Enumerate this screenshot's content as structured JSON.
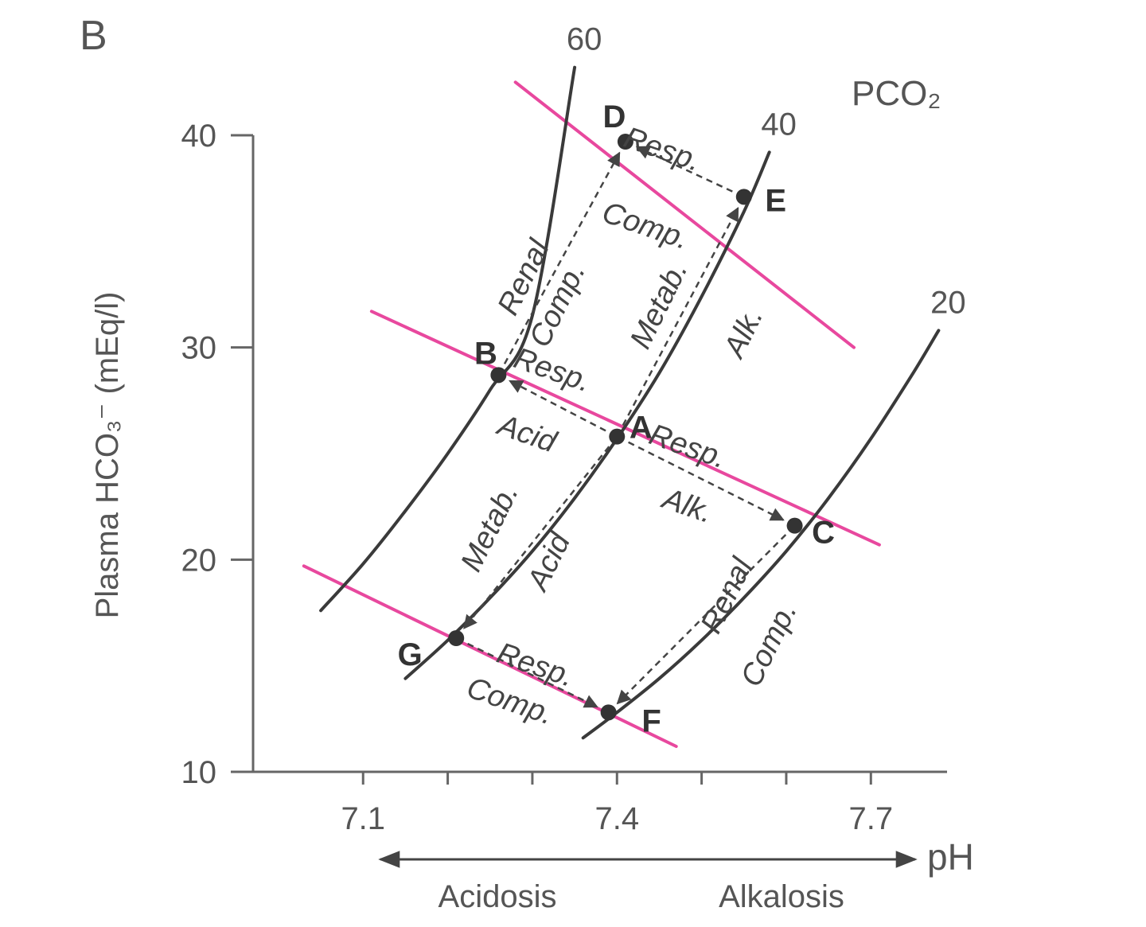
{
  "chart_data": {
    "type": "line",
    "panel_label": "B",
    "xlabel": "pH",
    "ylabel": "Plasma HCO₃⁻ (mEq/l)",
    "xlim": [
      6.97,
      7.79
    ],
    "ylim": [
      10,
      40
    ],
    "x_ticks": [
      7.1,
      7.2,
      7.3,
      7.4,
      7.5,
      7.6,
      7.7
    ],
    "x_tick_labels": [
      "7.1",
      "7.4",
      "7.7"
    ],
    "x_tick_label_values": [
      7.1,
      7.4,
      7.7
    ],
    "y_ticks": [
      10,
      20,
      30,
      40
    ],
    "y_tick_labels": [
      "10",
      "20",
      "30",
      "40"
    ],
    "y_tick_label_values": [
      10,
      20,
      30,
      40
    ],
    "isobar_title": "PCO₂",
    "series": [
      {
        "name": "60",
        "color": "#3a3a3a",
        "x": [
          7.05,
          7.1,
          7.15,
          7.2,
          7.25,
          7.3,
          7.35
        ],
        "y": [
          17.6,
          19.8,
          22.3,
          25.0,
          28.0,
          31.5,
          43.2
        ]
      },
      {
        "name": "40",
        "color": "#3a3a3a",
        "x": [
          7.15,
          7.2,
          7.25,
          7.3,
          7.35,
          7.4,
          7.45,
          7.5,
          7.55,
          7.58
        ],
        "y": [
          14.4,
          16.2,
          18.2,
          20.4,
          22.9,
          25.7,
          28.8,
          32.4,
          36.4,
          39.2
        ]
      },
      {
        "name": "20",
        "color": "#3a3a3a",
        "x": [
          7.36,
          7.4,
          7.45,
          7.5,
          7.55,
          7.6,
          7.65,
          7.7,
          7.75,
          7.78
        ],
        "y": [
          11.6,
          12.8,
          14.4,
          16.2,
          18.2,
          20.4,
          22.9,
          25.7,
          28.8,
          30.8
        ]
      }
    ],
    "buffer_lines": [
      {
        "color": "#e8489e",
        "x": [
          7.28,
          7.68
        ],
        "y": [
          42.5,
          30.0
        ]
      },
      {
        "color": "#e8489e",
        "x": [
          7.11,
          7.71
        ],
        "y": [
          31.7,
          20.7
        ]
      },
      {
        "color": "#e8489e",
        "x": [
          7.03,
          7.47
        ],
        "y": [
          19.7,
          11.2
        ]
      }
    ],
    "points": [
      {
        "label": "A",
        "x": 7.4,
        "y": 25.8
      },
      {
        "label": "B",
        "x": 7.26,
        "y": 28.7
      },
      {
        "label": "C",
        "x": 7.61,
        "y": 21.6
      },
      {
        "label": "D",
        "x": 7.41,
        "y": 39.7
      },
      {
        "label": "E",
        "x": 7.55,
        "y": 37.1
      },
      {
        "label": "F",
        "x": 7.39,
        "y": 12.8
      },
      {
        "label": "G",
        "x": 7.21,
        "y": 16.3
      }
    ],
    "arrows": [
      {
        "from": "A",
        "to": "B"
      },
      {
        "from": "A",
        "to": "C"
      },
      {
        "from": "A",
        "to": "E"
      },
      {
        "from": "A",
        "to": "G"
      },
      {
        "from": "B",
        "to": "D"
      },
      {
        "from": "E",
        "to": "D"
      },
      {
        "from": "C",
        "to": "F"
      },
      {
        "from": "G",
        "to": "F"
      }
    ],
    "annotations": [
      {
        "text": "Resp.",
        "x": 7.45,
        "y": 38.9,
        "rotate": 19
      },
      {
        "text": "Comp.",
        "x": 7.43,
        "y": 35.3,
        "rotate": 19
      },
      {
        "text": "Renal",
        "x": 7.3,
        "y": 33.1,
        "rotate": -64
      },
      {
        "text": "Comp.",
        "x": 7.34,
        "y": 31.8,
        "rotate": -64
      },
      {
        "text": "Metab.",
        "x": 7.46,
        "y": 31.8,
        "rotate": -64
      },
      {
        "text": "Alk.",
        "x": 7.56,
        "y": 30.5,
        "rotate": -64
      },
      {
        "text": "Resp.",
        "x": 7.32,
        "y": 28.5,
        "rotate": 19
      },
      {
        "text": "Acid",
        "x": 7.29,
        "y": 25.5,
        "rotate": 19
      },
      {
        "text": "Resp.",
        "x": 7.48,
        "y": 24.9,
        "rotate": 19
      },
      {
        "text": "Alk.",
        "x": 7.48,
        "y": 22.1,
        "rotate": 19
      },
      {
        "text": "Metab.",
        "x": 7.26,
        "y": 21.3,
        "rotate": -64
      },
      {
        "text": "Acid",
        "x": 7.33,
        "y": 19.7,
        "rotate": -64
      },
      {
        "text": "Renal",
        "x": 7.54,
        "y": 18.1,
        "rotate": -64
      },
      {
        "text": "Comp.",
        "x": 7.59,
        "y": 15.8,
        "rotate": -64
      },
      {
        "text": "Resp.",
        "x": 7.3,
        "y": 14.6,
        "rotate": 19
      },
      {
        "text": "Comp.",
        "x": 7.27,
        "y": 12.9,
        "rotate": 19
      }
    ],
    "acidosis_label": "Acidosis",
    "alkalosis_label": "Alkalosis"
  }
}
